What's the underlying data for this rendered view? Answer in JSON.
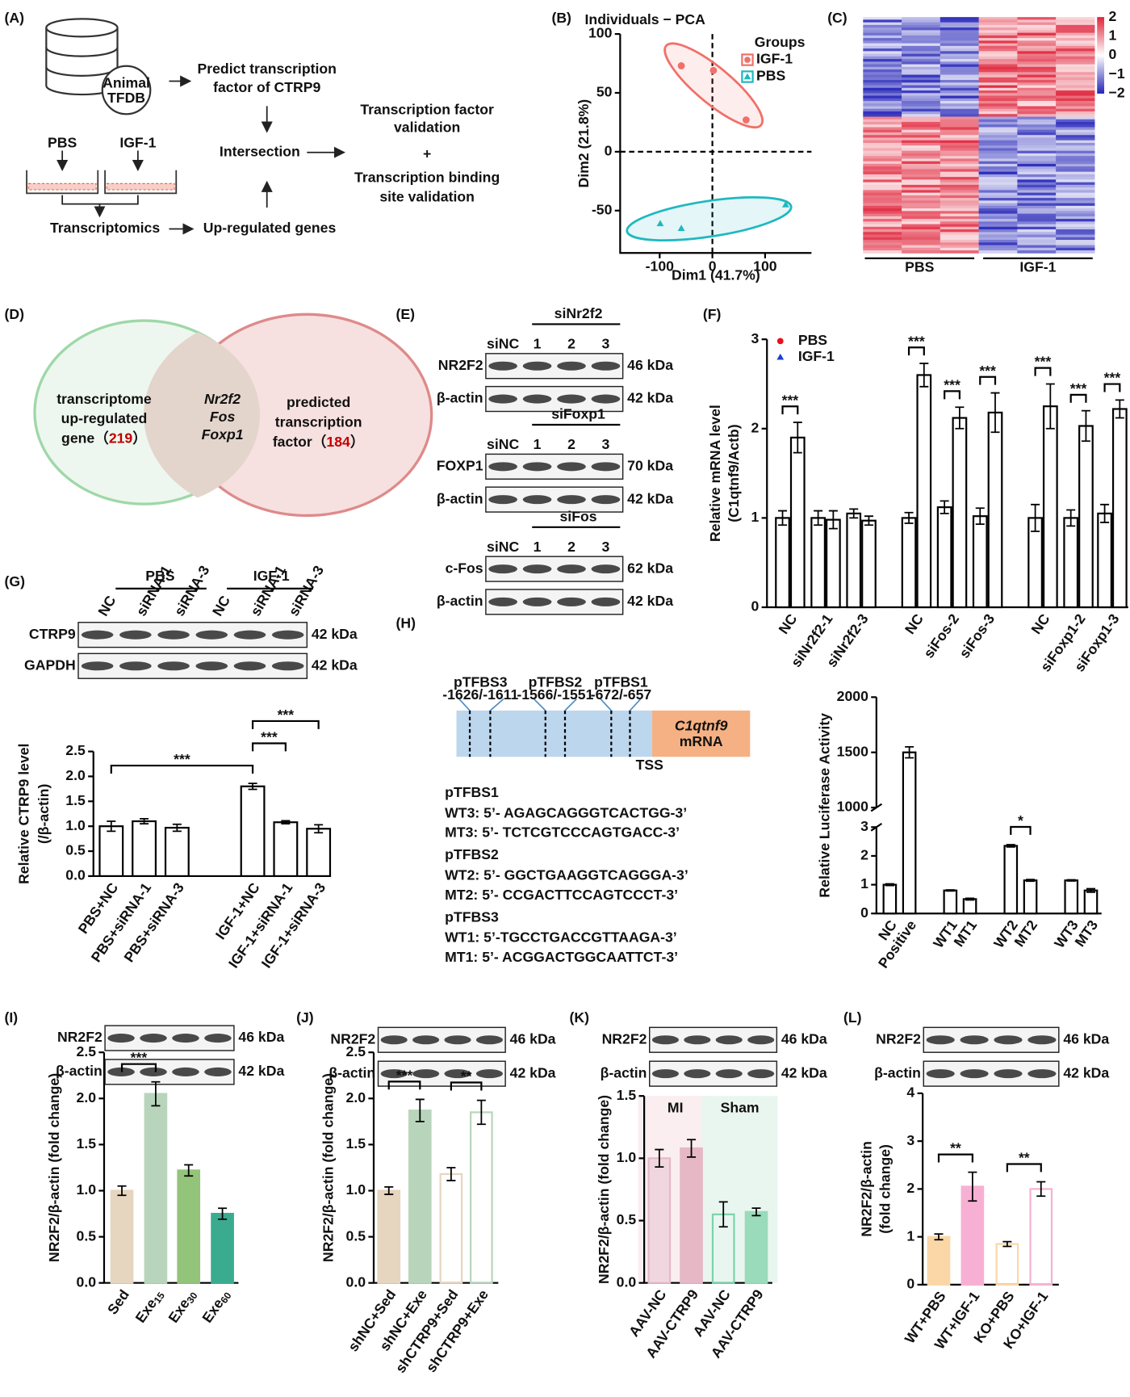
{
  "figure": {
    "A": {
      "panel": "(A)",
      "db": [
        "Animal",
        "TFDB"
      ],
      "predict": [
        "Predict transcription",
        "factor of CTRP9"
      ],
      "pbs": "PBS",
      "igf": "IGF-1",
      "intersection": "Intersection",
      "transcriptomics": "Transcriptomics",
      "upreg": "Up-regulated genes",
      "tfv": [
        "Transcription factor",
        "validation"
      ],
      "plus": "+",
      "tbsv": [
        "Transcription binding",
        "site validation"
      ]
    },
    "D": {
      "panel": "(D)",
      "left": [
        "transcriptome",
        "up-regulated",
        "gene（"
      ],
      "left_count": 219,
      "close": "）",
      "mid": [
        "Nr2f2",
        "Fos",
        "Foxp1"
      ],
      "right": [
        "predicted",
        "transcription",
        "factor（"
      ],
      "right_count": 184
    },
    "E": {
      "panel": "(E)",
      "blots": [
        {
          "header": "siNr2f2",
          "lanes": [
            "siNC",
            "1",
            "2",
            "3"
          ],
          "rows": [
            {
              "name": "NR2F2",
              "size": "46 kDa"
            },
            {
              "name": "β-actin",
              "size": "42 kDa"
            }
          ]
        },
        {
          "header": "siFoxp1",
          "lanes": [
            "siNC",
            "1",
            "2",
            "3"
          ],
          "rows": [
            {
              "name": "FOXP1",
              "size": "70 kDa"
            },
            {
              "name": "β-actin",
              "size": "42 kDa"
            }
          ]
        },
        {
          "header": "siFos",
          "lanes": [
            "siNC",
            "1",
            "2",
            "3"
          ],
          "rows": [
            {
              "name": "c-Fos",
              "size": "62 kDa"
            },
            {
              "name": "β-actin",
              "size": "42 kDa"
            }
          ]
        }
      ]
    },
    "H": {
      "panel": "(H)",
      "sites": [
        {
          "name": "pTFBS3",
          "pos": "-1626/-1611"
        },
        {
          "name": "pTFBS2",
          "pos": "-1566/-1551"
        },
        {
          "name": "pTFBS1",
          "pos": "-672/-657"
        }
      ],
      "gene": "C1qtnf9",
      "mrna": "mRNA",
      "tss": "TSS",
      "seqs": [
        {
          "title": "pTFBS1",
          "lines": [
            "WT3: 5’- AGAGCAGGGTCACTGG-3’",
            "MT3: 5’- TCTCGTCCCAGTGACC-3’"
          ]
        },
        {
          "title": "pTFBS2",
          "lines": [
            "WT2: 5’- GGCTGAAGGTCAGGGA-3’",
            "MT2: 5’- CCGACTTCCAGTCCCT-3’"
          ]
        },
        {
          "title": "pTFBS3",
          "lines": [
            "WT1: 5’-TGCCTGACCGTTAAGA-3’",
            "MT1: 5’- ACGGACTGGCAATTCT-3’"
          ]
        }
      ]
    }
  },
  "chart_data": [
    {
      "panel": "(B)",
      "type": "scatter",
      "title": "Individuals − PCA",
      "xlabel": "Dim1 (41.7%)",
      "ylabel": "Dim2 (21.8%)",
      "xlim": [
        -175,
        188
      ],
      "ylim": [
        -86,
        100
      ],
      "xticks": [
        -100,
        0,
        100
      ],
      "yticks": [
        -50,
        0,
        50,
        100
      ],
      "legend_title": "Groups",
      "legend": "top-right",
      "series": [
        {
          "name": "IGF-1",
          "color": "#f07069",
          "marker": "circle",
          "x": [
            -59,
            2,
            64
          ],
          "y": [
            73,
            69,
            27
          ]
        },
        {
          "name": "PBS",
          "color": "#1fb8c0",
          "marker": "triangle",
          "x": [
            -99,
            -59,
            139
          ],
          "y": [
            -61,
            -65,
            -45
          ]
        }
      ]
    },
    {
      "panel": "(C)",
      "type": "heatmap",
      "colorbar_ticks": [
        2,
        1,
        0,
        {
          "value": -1,
          "label": "−1"
        },
        {
          "value": -2,
          "label": "−2"
        }
      ],
      "groups": [
        "PBS",
        "IGF-1"
      ]
    },
    {
      "panel": "(F)",
      "type": "bar",
      "ylabel": [
        "Relative mRNA level",
        "(C1qtnf9/Actb)"
      ],
      "ylim": [
        0,
        3
      ],
      "yticks": [
        0,
        1,
        2,
        3
      ],
      "legend": "top-left",
      "categories": [
        "NC",
        "siNr2f2-1",
        "siNr2f2-3",
        "NC",
        "siFos-2",
        "siFos-3",
        "NC",
        "siFoxp1-2",
        "siFoxp1-3"
      ],
      "series": [
        {
          "name": "PBS",
          "color": "#e8101a",
          "marker": "circle",
          "fill": "#ffffff",
          "stroke": "#000000",
          "values": [
            1.0,
            1.0,
            1.05,
            1.0,
            1.12,
            1.02,
            1.0,
            1.0,
            1.05
          ],
          "errors": [
            0.08,
            0.08,
            0.05,
            0.06,
            0.07,
            0.09,
            0.15,
            0.09,
            0.1
          ]
        },
        {
          "name": "IGF-1",
          "color": "#1a3fd6",
          "marker": "triangle",
          "fill": "#ffffff",
          "stroke": "#000000",
          "values": [
            1.9,
            0.98,
            0.97,
            2.6,
            2.12,
            2.18,
            2.25,
            2.03,
            2.22
          ],
          "errors": [
            0.17,
            0.1,
            0.05,
            0.13,
            0.12,
            0.22,
            0.25,
            0.17,
            0.1
          ]
        }
      ],
      "annotations": [
        {
          "category": 0,
          "label": "***"
        },
        {
          "category": 3,
          "label": "***"
        },
        {
          "category": 4,
          "label": "***"
        },
        {
          "category": 5,
          "label": "***"
        },
        {
          "category": 6,
          "label": "***"
        },
        {
          "category": 7,
          "label": "***"
        },
        {
          "category": 8,
          "label": "***"
        }
      ]
    },
    {
      "panel": "(G)",
      "type": "bar",
      "blot": {
        "groups": [
          "PBS",
          "IGF-1"
        ],
        "lanes": [
          "NC",
          "siRNA-1",
          "siRNA-3",
          "NC",
          "siRNA-1",
          "siRNA-3"
        ],
        "rows": [
          {
            "name": "CTRP9",
            "size": "42 kDa"
          },
          {
            "name": "GAPDH",
            "size": "42 kDa"
          }
        ]
      },
      "ylabel": [
        "Relative CTRP9 level",
        "(/β-actin)"
      ],
      "ylim": [
        0,
        2.5
      ],
      "yticks": [
        {
          "value": 0,
          "label": "0.0"
        },
        {
          "value": 0.5,
          "label": "0.5"
        },
        {
          "value": 1,
          "label": "1.0"
        },
        {
          "value": 1.5,
          "label": "1.5"
        },
        {
          "value": 2,
          "label": "2.0"
        },
        {
          "value": 2.5,
          "label": "2.5"
        }
      ],
      "categories": [
        "PBS+NC",
        "PBS+siRNA-1",
        "PBS+siRNA-3",
        "IGF-1+NC",
        "IGF-1+siRNA-1",
        "IGF-1+siRNA-3"
      ],
      "series": [
        {
          "fill": "#ffffff",
          "stroke": "#000000",
          "values": [
            1.0,
            1.1,
            0.97,
            1.8,
            1.08,
            0.95
          ],
          "errors": [
            0.1,
            0.05,
            0.07,
            0.06,
            0.03,
            0.08
          ]
        }
      ],
      "annotations": [
        {
          "from": 0,
          "to": 3,
          "label": "***"
        },
        {
          "from": 3,
          "to": 4,
          "label": "***"
        },
        {
          "from": 3,
          "to": 5,
          "label": "***"
        }
      ]
    },
    {
      "type": "bar",
      "axis_break": true,
      "ylabel": [
        "Relative Luciferase Activity"
      ],
      "ylim": [
        0,
        3
      ],
      "yticks": [
        0,
        1,
        2,
        3
      ],
      "ylim_upper": [
        1000,
        2000
      ],
      "yticks_upper": [
        1000,
        1500,
        2000
      ],
      "categories": [
        "NC",
        "Positive",
        "WT1",
        "MT1",
        "WT2",
        "MT2",
        "WT3",
        "MT3"
      ],
      "series": [
        {
          "fill": "#ffffff",
          "stroke": "#000000",
          "values": [
            1.0,
            1500,
            0.8,
            0.5,
            2.35,
            1.15,
            1.15,
            0.8
          ],
          "errors": [
            0.03,
            50,
            0.02,
            0.03,
            0.04,
            0.03,
            0.02,
            0.06
          ]
        }
      ],
      "annotations": [
        {
          "from": 4,
          "to": 5,
          "label": "*"
        }
      ]
    },
    {
      "panel": "(I)",
      "type": "bar",
      "blot": {
        "rows": [
          {
            "name": "NR2F2",
            "size": "46 kDa"
          },
          {
            "name": "β-actin",
            "size": "42 kDa"
          }
        ]
      },
      "ylabel": [
        "NR2F2/β-actin (fold change)"
      ],
      "ylim": [
        0,
        2.5
      ],
      "yticks": [
        {
          "value": 0,
          "label": "0.0"
        },
        {
          "value": 0.5,
          "label": "0.5"
        },
        {
          "value": 1,
          "label": "1.0"
        },
        {
          "value": 1.5,
          "label": "1.5"
        },
        {
          "value": 2,
          "label": "2.0"
        },
        {
          "value": 2.5,
          "label": "2.5"
        }
      ],
      "categories": [
        {
          "base": "Sed"
        },
        {
          "base": "Exe",
          "sub": "15"
        },
        {
          "base": "Exe",
          "sub": "30"
        },
        {
          "base": "Exe",
          "sub": "60"
        }
      ],
      "series": [
        {
          "fills": [
            "#e6d5bf",
            "#b8d5bb",
            "#94c37a",
            "#3bab8f"
          ],
          "strokes": [
            "#e6d5bf",
            "#b8d5bb",
            "#94c37a",
            "#3bab8f"
          ],
          "values": [
            1.0,
            2.05,
            1.22,
            0.75
          ],
          "errors": [
            0.05,
            0.13,
            0.06,
            0.06
          ]
        }
      ],
      "annotations": [
        {
          "from": 0,
          "to": 1,
          "label": "***"
        }
      ]
    },
    {
      "panel": "(J)",
      "type": "bar",
      "blot": {
        "rows": [
          {
            "name": "NR2F2",
            "size": "46 kDa"
          },
          {
            "name": "β-actin",
            "size": "42 kDa"
          }
        ]
      },
      "ylabel": [
        "NR2F2/β-actin (fold change)"
      ],
      "ylim": [
        0,
        2.5
      ],
      "yticks": [
        {
          "value": 0,
          "label": "0.0"
        },
        {
          "value": 0.5,
          "label": "0.5"
        },
        {
          "value": 1,
          "label": "1.0"
        },
        {
          "value": 1.5,
          "label": "1.5"
        },
        {
          "value": 2,
          "label": "2.0"
        },
        {
          "value": 2.5,
          "label": "2.5"
        }
      ],
      "categories": [
        "shNC+Sed",
        "shNC+Exe",
        "shCTRP9+Sed",
        "shCTRP9+Exe"
      ],
      "series": [
        {
          "fills": [
            "#e6d5bf",
            "#b8d5bb",
            "none",
            "none"
          ],
          "strokes": [
            "#e6d5bf",
            "#b8d5bb",
            "#e6d5bf",
            "#b8d5bb"
          ],
          "values": [
            1.0,
            1.87,
            1.18,
            1.85
          ],
          "errors": [
            0.04,
            0.12,
            0.07,
            0.13
          ]
        }
      ],
      "annotations": [
        {
          "from": 0,
          "to": 1,
          "label": "***"
        },
        {
          "from": 2,
          "to": 3,
          "label": "**"
        }
      ]
    },
    {
      "panel": "(K)",
      "type": "bar",
      "blot": {
        "rows": [
          {
            "name": "NR2F2",
            "size": "46 kDa"
          },
          {
            "name": "β-actin",
            "size": "42 kDa"
          }
        ]
      },
      "ylabel": [
        "NR2F2/β-actin (fold change)"
      ],
      "ylim": [
        0,
        1.5
      ],
      "yticks": [
        {
          "value": 0,
          "label": "0.0"
        },
        {
          "value": 0.5,
          "label": "0.5"
        },
        {
          "value": 1,
          "label": "1.0"
        },
        {
          "value": 1.5,
          "label": "1.5"
        }
      ],
      "groups": [
        {
          "name": "MI",
          "color": "#faeef1"
        },
        {
          "name": "Sham",
          "color": "#e9f6f0"
        }
      ],
      "categories": [
        "AAV-NC",
        "AAV-CTRP9",
        "AAV-NC",
        "AAV-CTRP9"
      ],
      "series": [
        {
          "fills": [
            "#f0d7df",
            "#e6b8c6",
            "none",
            "#9adbbc"
          ],
          "strokes": [
            "#e6b8c6",
            "#e6b8c6",
            "#7ad4aa",
            "#9adbbc"
          ],
          "values": [
            1.0,
            1.08,
            0.55,
            0.57
          ],
          "errors": [
            0.07,
            0.07,
            0.1,
            0.03
          ]
        }
      ],
      "annotations": []
    },
    {
      "panel": "(L)",
      "type": "bar",
      "blot": {
        "rows": [
          {
            "name": "NR2F2",
            "size": "46 kDa"
          },
          {
            "name": "β-actin",
            "size": "42 kDa"
          }
        ]
      },
      "ylabel": [
        "NR2F2/β-actin",
        "(fold change)"
      ],
      "ylim": [
        0,
        4
      ],
      "yticks": [
        0,
        1,
        2,
        3,
        4
      ],
      "categories": [
        "WT+PBS",
        "WT+IGF-1",
        "KO+PBS",
        "KO+IGF-1"
      ],
      "series": [
        {
          "fills": [
            "#fbd7a8",
            "#f7b0d4",
            "none",
            "none"
          ],
          "strokes": [
            "#fbd7a8",
            "#f7b0d4",
            "#fbd7a8",
            "#f7b0d4"
          ],
          "values": [
            1.0,
            2.05,
            0.85,
            2.0
          ],
          "errors": [
            0.06,
            0.3,
            0.05,
            0.15
          ]
        }
      ],
      "annotations": [
        {
          "from": 0,
          "to": 1,
          "label": "**"
        },
        {
          "from": 2,
          "to": 3,
          "label": "**"
        }
      ]
    }
  ]
}
